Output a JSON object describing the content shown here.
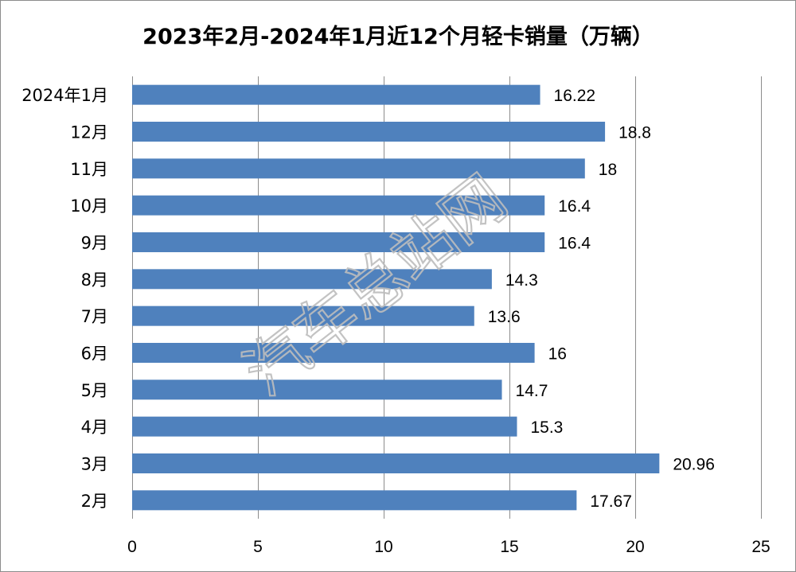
{
  "chart_data": {
    "type": "bar",
    "orientation": "horizontal",
    "title": "2023年2月-2024年1月近12个月轻卡销量（万辆）",
    "categories": [
      "2024年1月",
      "12月",
      "11月",
      "10月",
      "9月",
      "8月",
      "7月",
      "6月",
      "5月",
      "4月",
      "3月",
      "2月"
    ],
    "values": [
      16.22,
      18.8,
      18,
      16.4,
      16.4,
      14.3,
      13.6,
      16,
      14.7,
      15.3,
      20.96,
      17.67
    ],
    "value_labels": [
      "16.22",
      "18.8",
      "18",
      "16.4",
      "16.4",
      "14.3",
      "13.6",
      "16",
      "14.7",
      "15.3",
      "20.96",
      "17.67"
    ],
    "xlim": [
      0,
      25
    ],
    "x_ticks": [
      "0",
      "5",
      "10",
      "15",
      "20",
      "25"
    ],
    "x_tick_values": [
      0,
      5,
      10,
      15,
      20,
      25
    ],
    "grid": "vertical",
    "legend": "none",
    "bar_color": "#4f81bd",
    "grid_color": "#8c8c8c"
  },
  "watermark": "汽车总站网"
}
